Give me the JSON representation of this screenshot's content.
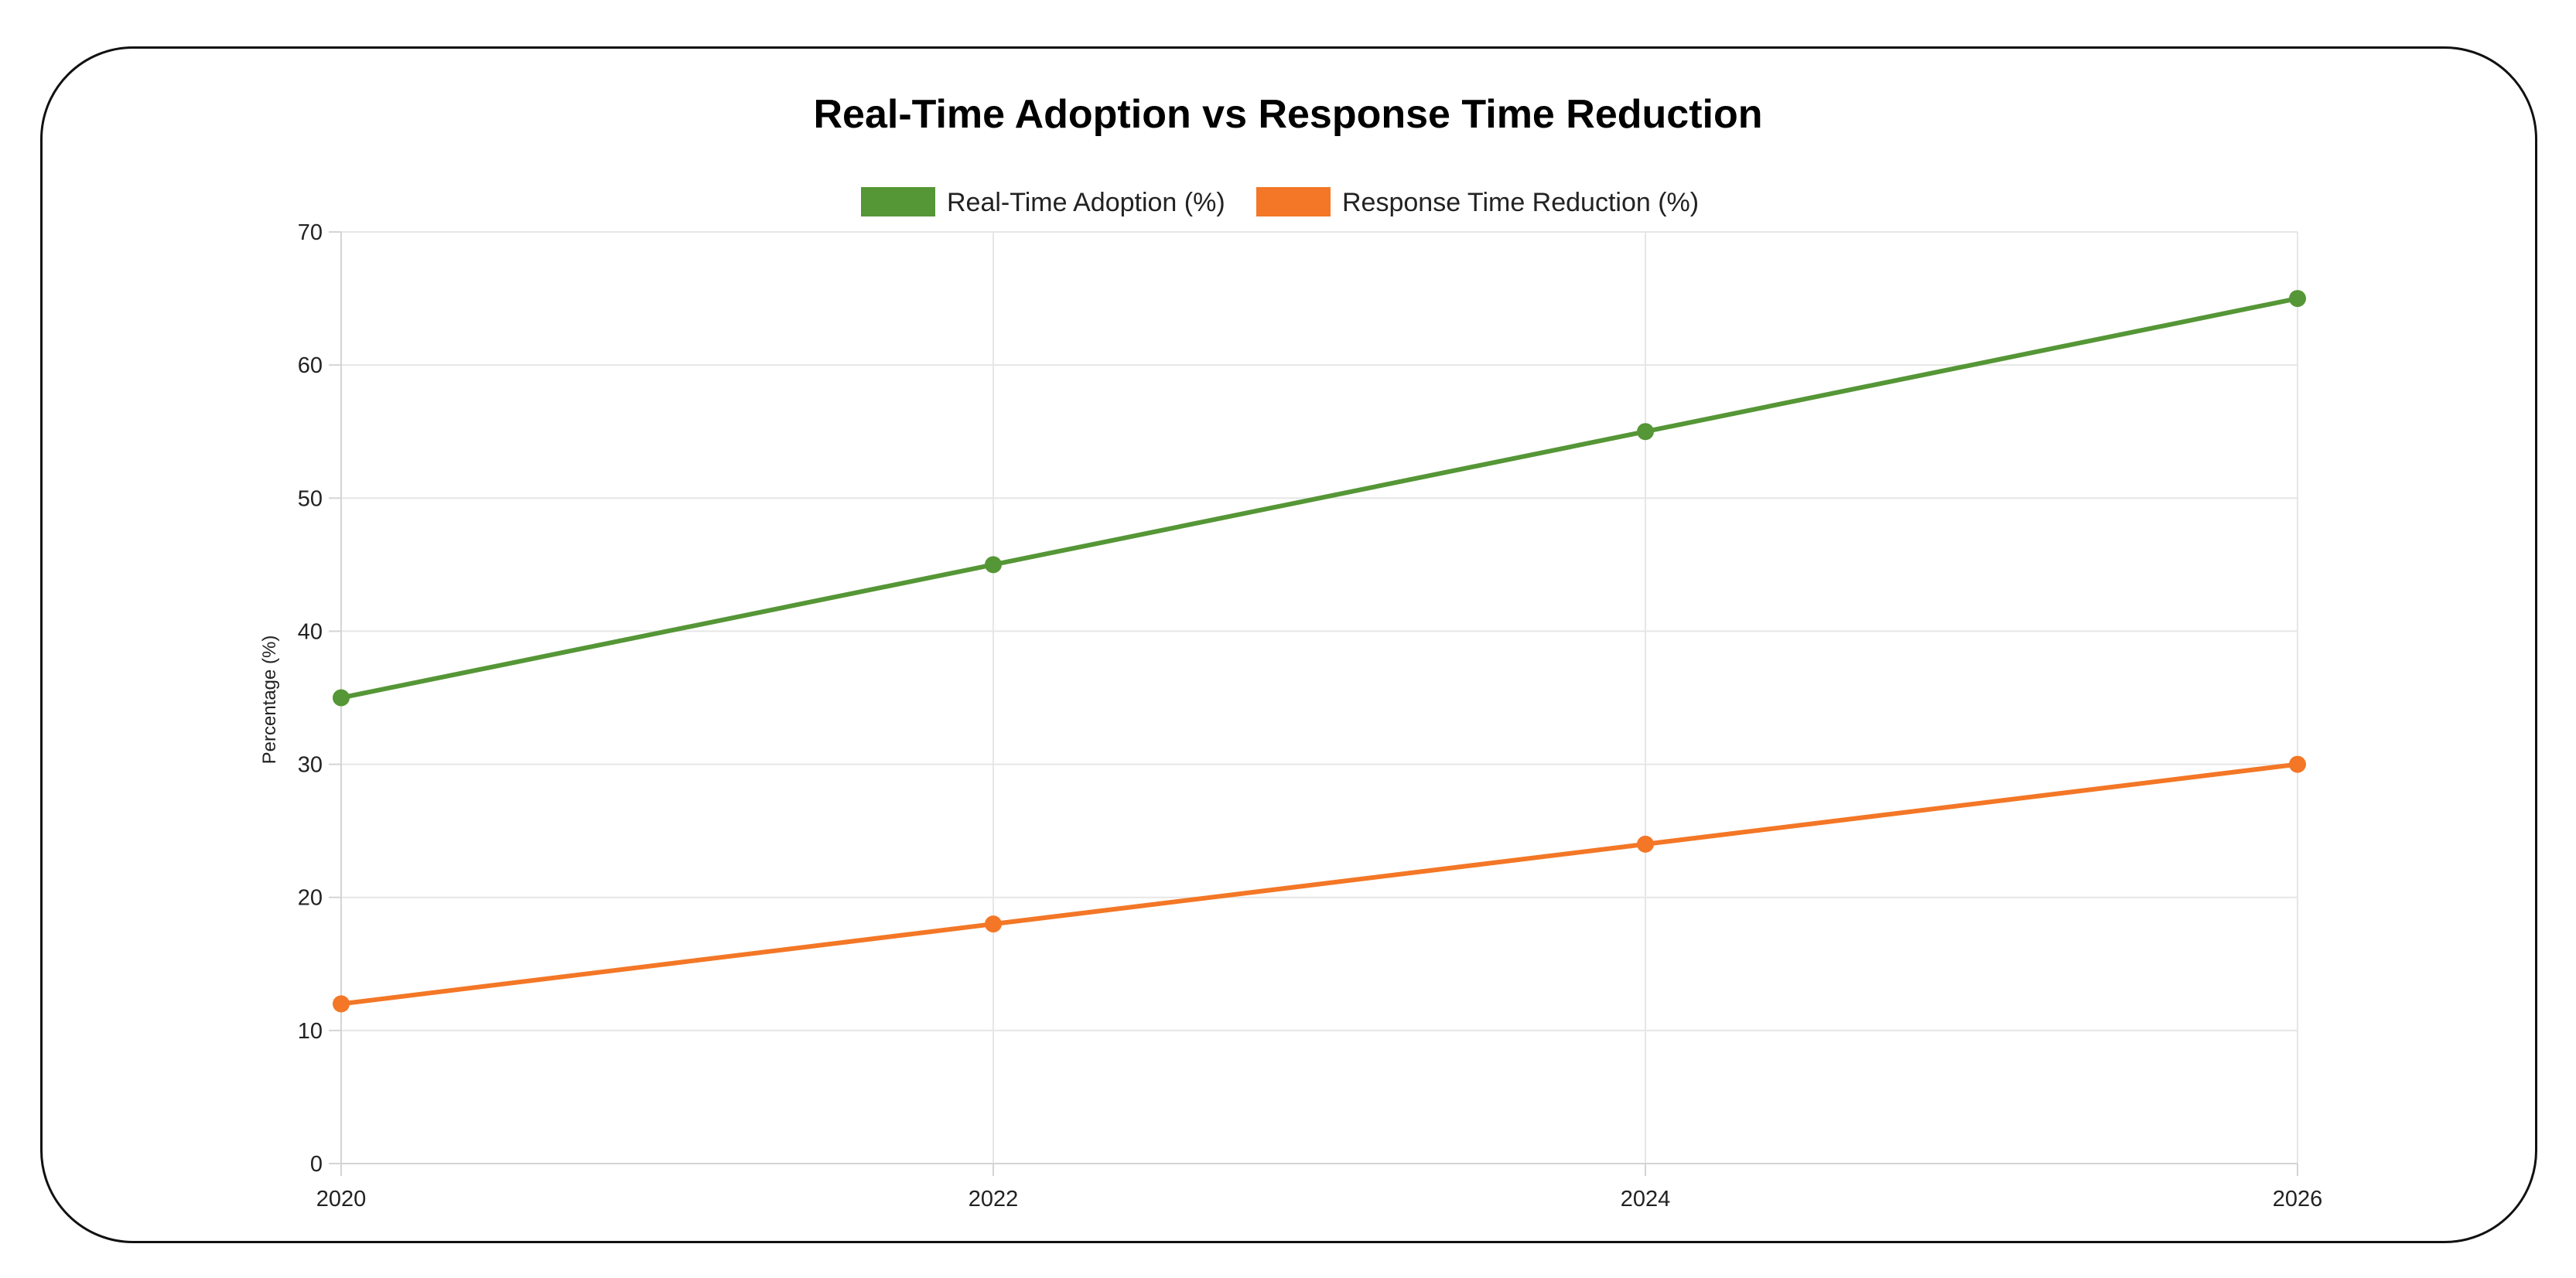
{
  "chart_data": {
    "type": "line",
    "title": "Real-Time Adoption vs Response Time Reduction",
    "xlabel": "",
    "ylabel": "Percentage (%)",
    "x": [
      "2020",
      "2022",
      "2024",
      "2026"
    ],
    "ylim": [
      0,
      70
    ],
    "yticks": [
      "0",
      "10",
      "20",
      "30",
      "40",
      "50",
      "60",
      "70"
    ],
    "grid": true,
    "legend_position": "top",
    "series": [
      {
        "name": "Real-Time Adoption (%)",
        "values": [
          35,
          45,
          55,
          65
        ],
        "color": "#559636"
      },
      {
        "name": "Response Time Reduction (%)",
        "values": [
          12,
          18,
          24,
          30
        ],
        "color": "#f37726"
      }
    ]
  }
}
